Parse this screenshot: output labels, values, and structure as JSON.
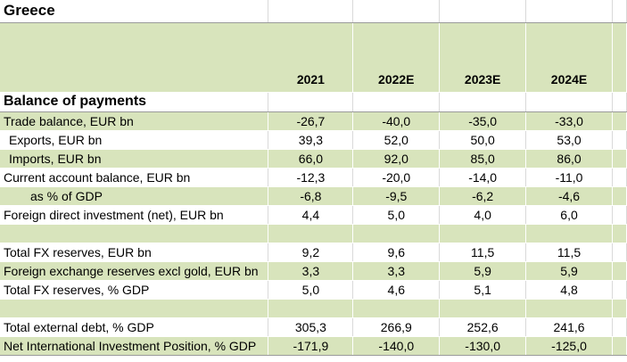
{
  "title": "Greece",
  "years": [
    "2021",
    "2022E",
    "2023E",
    "2024E"
  ],
  "section_title": "Balance of payments",
  "rows": [
    {
      "label": "Trade balance, EUR bn",
      "values": [
        "-26,7",
        "-40,0",
        "-35,0",
        "-33,0"
      ]
    },
    {
      "label": "Exports, EUR bn",
      "values": [
        "39,3",
        "52,0",
        "50,0",
        "53,0"
      ]
    },
    {
      "label": "Imports, EUR bn",
      "values": [
        "66,0",
        "92,0",
        "85,0",
        "86,0"
      ]
    },
    {
      "label": "Current account balance, EUR bn",
      "values": [
        "-12,3",
        "-20,0",
        "-14,0",
        "-11,0"
      ]
    },
    {
      "label": "as % of GDP",
      "values": [
        "-6,8",
        "-9,5",
        "-6,2",
        "-4,6"
      ]
    },
    {
      "label": "Foreign direct investment (net), EUR bn",
      "values": [
        "4,4",
        "5,0",
        "4,0",
        "6,0"
      ]
    },
    {
      "label": "",
      "values": [
        "",
        "",
        "",
        ""
      ]
    },
    {
      "label": "Total FX reserves, EUR bn",
      "values": [
        "9,2",
        "9,6",
        "11,5",
        "11,5"
      ]
    },
    {
      "label": "Foreign exchange reserves excl gold, EUR bn",
      "values": [
        "3,3",
        "3,3",
        "5,9",
        "5,9"
      ]
    },
    {
      "label": "Total FX reserves, % GDP",
      "values": [
        "5,0",
        "4,6",
        "5,1",
        "4,8"
      ]
    },
    {
      "label": "",
      "values": [
        "",
        "",
        "",
        ""
      ]
    },
    {
      "label": "Total external debt, % GDP",
      "values": [
        "305,3",
        "266,9",
        "252,6",
        "241,6"
      ]
    },
    {
      "label": "Net International Investment Position, % GDP",
      "values": [
        "-171,9",
        "-140,0",
        "-130,0",
        "-125,0"
      ]
    }
  ]
}
